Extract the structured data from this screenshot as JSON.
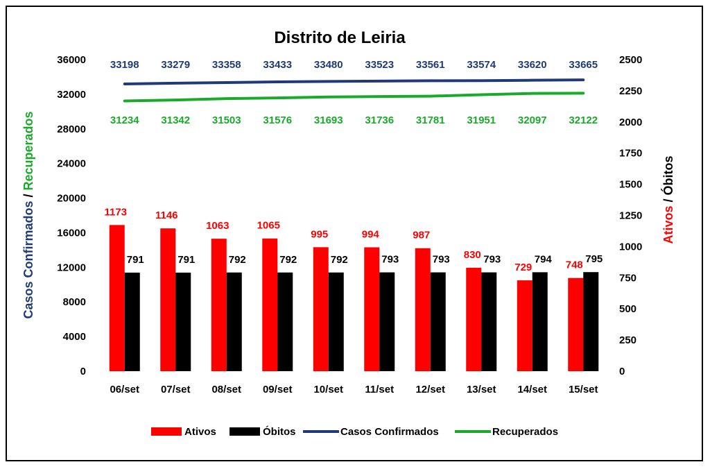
{
  "chart_data": {
    "type": "bar",
    "title": "Distrito de Leiria",
    "categories": [
      "06/set",
      "07/set",
      "08/set",
      "09/set",
      "10/set",
      "11/set",
      "12/set",
      "13/set",
      "14/set",
      "15/set"
    ],
    "left_axis": {
      "label_part1": "Casos Confirmados",
      "label_sep": " / ",
      "label_part2": "Recuperados",
      "ylim": [
        0,
        36000
      ],
      "ticks": [
        "0",
        "4000",
        "8000",
        "12000",
        "16000",
        "20000",
        "24000",
        "28000",
        "32000",
        "36000"
      ]
    },
    "right_axis": {
      "label_part1": "Ativos",
      "label_sep": " / ",
      "label_part2": "Óbitos",
      "ylim": [
        0,
        2500
      ],
      "ticks": [
        "0",
        "250",
        "500",
        "750",
        "1000",
        "1250",
        "1500",
        "1750",
        "2000",
        "2250",
        "2500"
      ]
    },
    "series": [
      {
        "name": "Ativos",
        "kind": "bar",
        "axis": "right",
        "color": "#ff0000",
        "values": [
          1173,
          1146,
          1063,
          1065,
          995,
          994,
          987,
          830,
          729,
          748
        ]
      },
      {
        "name": "Óbitos",
        "kind": "bar",
        "axis": "right",
        "color": "#000000",
        "values": [
          791,
          791,
          792,
          792,
          792,
          793,
          793,
          793,
          794,
          795
        ]
      },
      {
        "name": "Casos Confirmados",
        "kind": "line",
        "axis": "left",
        "color": "#1f3a7a",
        "values": [
          33198,
          33279,
          33358,
          33433,
          33480,
          33523,
          33561,
          33574,
          33620,
          33665
        ]
      },
      {
        "name": "Recuperados",
        "kind": "line",
        "axis": "left",
        "color": "#1aaa2a",
        "values": [
          31234,
          31342,
          31503,
          31576,
          31693,
          31736,
          31781,
          31951,
          32097,
          32122
        ]
      }
    ],
    "legend_position": "bottom",
    "grid": false
  }
}
